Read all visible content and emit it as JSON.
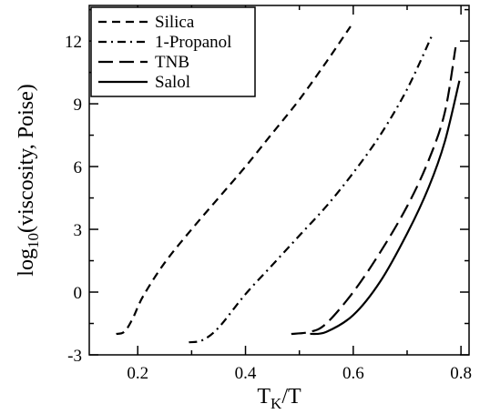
{
  "chart_data": {
    "type": "line",
    "xlabel": {
      "main": "T",
      "sub": "K",
      "tail": "/T"
    },
    "ylabel": {
      "pre": "log",
      "sub": "10",
      "tail": "(viscosity, Poise)"
    },
    "xlim": [
      0.11,
      0.815
    ],
    "ylim": [
      -3,
      13.7
    ],
    "xticks": [
      0.2,
      0.4,
      0.6,
      0.8
    ],
    "xtick_labels": [
      "0.2",
      "0.4",
      "0.6",
      "0.8"
    ],
    "yticks": [
      -3,
      0,
      3,
      6,
      9,
      12
    ],
    "ytick_labels": [
      "-3",
      "0",
      "3",
      "6",
      "9",
      "12"
    ],
    "grid": false,
    "legend_position": "top-left",
    "series": [
      {
        "name": "Silica",
        "style": "dashed",
        "color": "#000000",
        "x": [
          0.16,
          0.175,
          0.19,
          0.21,
          0.25,
          0.3,
          0.35,
          0.4,
          0.45,
          0.5,
          0.55,
          0.595
        ],
        "y": [
          -2.0,
          -1.9,
          -1.3,
          -0.2,
          1.4,
          3.0,
          4.5,
          6.0,
          7.6,
          9.2,
          11.0,
          12.7
        ]
      },
      {
        "name": "1-Propanol",
        "style": "dashdot",
        "color": "#000000",
        "x": [
          0.295,
          0.32,
          0.35,
          0.4,
          0.45,
          0.5,
          0.55,
          0.6,
          0.65,
          0.7,
          0.745
        ],
        "y": [
          -2.4,
          -2.3,
          -1.7,
          -0.1,
          1.3,
          2.7,
          4.1,
          5.7,
          7.5,
          9.7,
          12.2
        ]
      },
      {
        "name": "TNB",
        "style": "longdash",
        "color": "#000000",
        "x": [
          0.485,
          0.52,
          0.55,
          0.6,
          0.65,
          0.7,
          0.74,
          0.77,
          0.79
        ],
        "y": [
          -2.0,
          -1.9,
          -1.5,
          0.0,
          1.9,
          4.1,
          6.3,
          8.6,
          11.7
        ]
      },
      {
        "name": "Salol",
        "style": "solid",
        "color": "#000000",
        "x": [
          0.52,
          0.55,
          0.6,
          0.65,
          0.7,
          0.74,
          0.77,
          0.797
        ],
        "y": [
          -2.0,
          -1.9,
          -1.1,
          0.5,
          2.8,
          5.0,
          7.2,
          10.1
        ]
      }
    ]
  }
}
